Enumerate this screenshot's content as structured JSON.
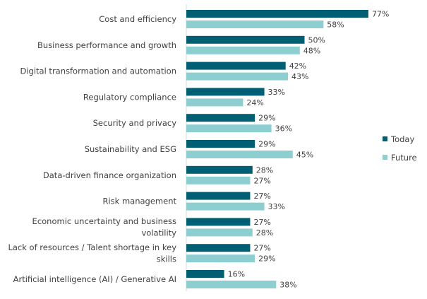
{
  "chart_data": {
    "type": "bar",
    "orientation": "horizontal",
    "title": "",
    "xlabel": "",
    "ylabel": "",
    "xlim": [
      0,
      100
    ],
    "grid": false,
    "legend_position": "right",
    "value_suffix": "%",
    "categories": [
      [
        "Cost and efficiency"
      ],
      [
        "Business performance and growth"
      ],
      [
        "Digital transformation and automation"
      ],
      [
        "Regulatory compliance"
      ],
      [
        "Security and privacy"
      ],
      [
        "Sustainability and ESG"
      ],
      [
        "Data-driven finance organization"
      ],
      [
        "Risk management"
      ],
      [
        "Economic uncertainty and business",
        "volatility"
      ],
      [
        "Lack of resources / Talent shortage in key",
        "skills"
      ],
      [
        "Artificial intelligence (AI) / Generative AI"
      ]
    ],
    "series": [
      {
        "name": "Today",
        "color": "#005f73",
        "values": [
          77,
          50,
          42,
          33,
          29,
          29,
          28,
          27,
          27,
          27,
          16
        ]
      },
      {
        "name": "Future",
        "color": "#8dcfd1",
        "values": [
          58,
          48,
          43,
          24,
          36,
          45,
          27,
          33,
          28,
          29,
          38
        ]
      }
    ]
  }
}
